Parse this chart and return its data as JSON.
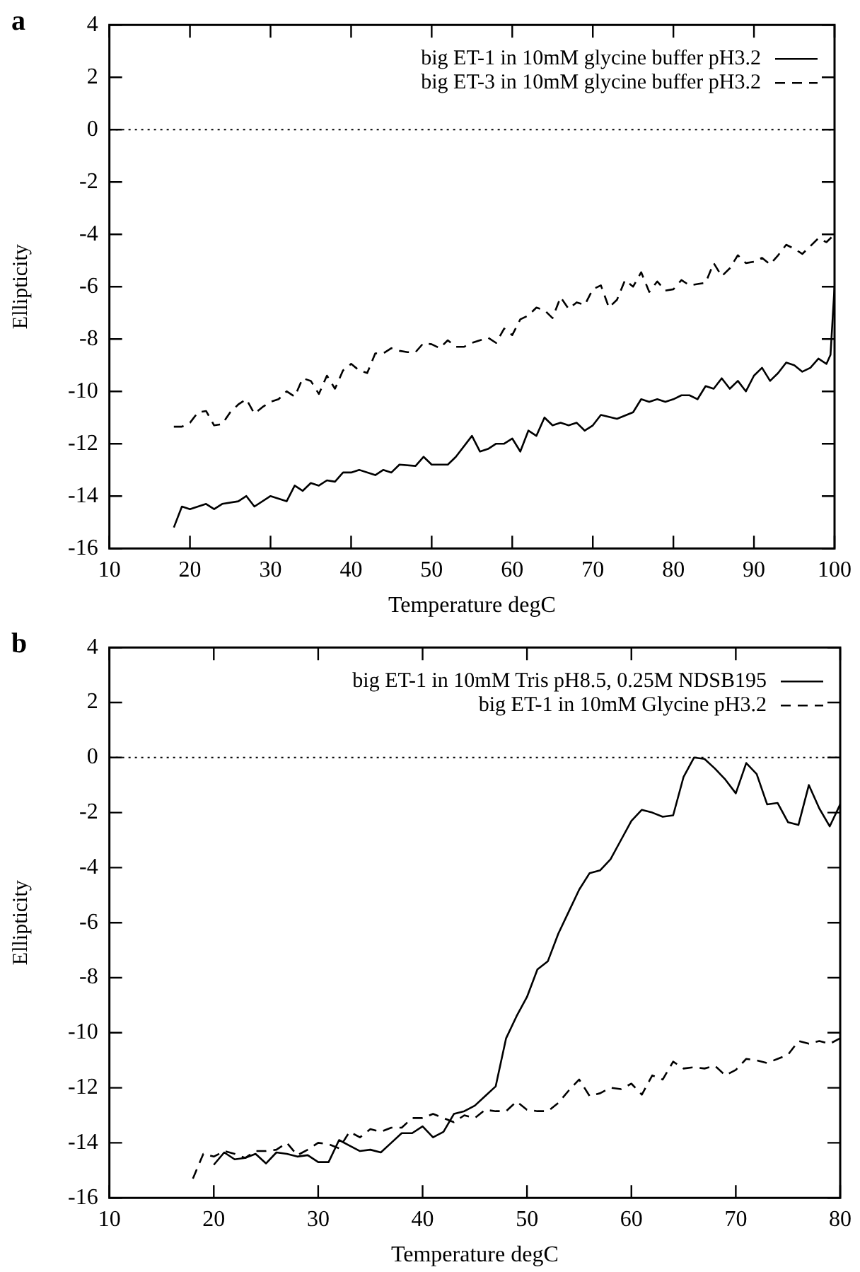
{
  "chart_data": [
    {
      "type": "line",
      "title": "a",
      "xlabel": "Temperature degC",
      "ylabel": "Ellipticity",
      "xlim": [
        10,
        100
      ],
      "xticks": [
        10,
        20,
        30,
        40,
        50,
        60,
        70,
        80,
        90,
        100
      ],
      "ylim": [
        -16,
        4
      ],
      "yticks": [
        -16,
        -14,
        -12,
        -10,
        -8,
        -6,
        -4,
        -2,
        0,
        2,
        4
      ],
      "legend": "top right",
      "grid": false,
      "marker": "none",
      "ref_lines": [
        {
          "axis": "y",
          "value": 0,
          "line_style": "dotted",
          "color": "#000000"
        }
      ],
      "series": [
        {
          "name": "big ET-1 in 10mM glycine buffer pH3.2",
          "color": "#000000",
          "line_style": "solid",
          "x": [
            18,
            19,
            20,
            22,
            23,
            24,
            26,
            27,
            28,
            30,
            32,
            33,
            34,
            35,
            36,
            37,
            38,
            39,
            40,
            41,
            43,
            44,
            45,
            46,
            48,
            49,
            50,
            52,
            53,
            55,
            56,
            57,
            58,
            59,
            60,
            61,
            62,
            63,
            64,
            65,
            66,
            67,
            68,
            69,
            70,
            71,
            73,
            75,
            76,
            77,
            78,
            79,
            80,
            81,
            82,
            83,
            84,
            85,
            86,
            87,
            88,
            89,
            90,
            91,
            92,
            93,
            94,
            95,
            96,
            97,
            98,
            99,
            99.5,
            100
          ],
          "values": [
            -15.2,
            -14.4,
            -14.5,
            -14.3,
            -14.5,
            -14.3,
            -14.2,
            -14.0,
            -14.4,
            -14.0,
            -14.2,
            -13.6,
            -13.8,
            -13.5,
            -13.6,
            -13.4,
            -13.45,
            -13.1,
            -13.1,
            -13.0,
            -13.2,
            -13.0,
            -13.1,
            -12.8,
            -12.85,
            -12.5,
            -12.8,
            -12.8,
            -12.5,
            -11.7,
            -12.3,
            -12.2,
            -12.0,
            -12.0,
            -11.8,
            -12.3,
            -11.5,
            -11.7,
            -11.0,
            -11.3,
            -11.2,
            -11.3,
            -11.2,
            -11.5,
            -11.3,
            -10.9,
            -11.05,
            -10.8,
            -10.3,
            -10.4,
            -10.3,
            -10.4,
            -10.3,
            -10.15,
            -10.15,
            -10.3,
            -9.8,
            -9.9,
            -9.5,
            -9.9,
            -9.6,
            -10.0,
            -9.4,
            -9.1,
            -9.6,
            -9.3,
            -8.9,
            -9.0,
            -9.25,
            -9.1,
            -8.75,
            -8.95,
            -8.6,
            -6.0
          ]
        },
        {
          "name": "big ET-3 in 10mM glycine buffer pH3.2",
          "color": "#000000",
          "line_style": "dashed",
          "x": [
            18,
            19,
            20,
            21,
            22,
            23,
            24,
            25,
            26,
            27,
            28,
            29,
            30,
            31,
            32,
            33,
            34,
            35,
            36,
            37,
            38,
            39,
            40,
            41,
            42,
            43,
            44,
            45,
            46,
            47,
            48,
            49,
            50,
            51,
            52,
            53,
            54,
            55,
            56,
            57,
            58,
            59,
            60,
            61,
            62,
            63,
            64,
            65,
            66,
            67,
            68,
            69,
            70,
            71,
            72,
            73,
            74,
            75,
            76,
            77,
            78,
            79,
            80,
            81,
            82,
            83,
            84,
            85,
            86,
            87,
            88,
            89,
            90,
            91,
            92,
            93,
            94,
            95,
            96,
            97,
            98,
            99,
            100
          ],
          "values": [
            -11.35,
            -11.35,
            -11.2,
            -10.8,
            -10.75,
            -11.3,
            -11.25,
            -10.8,
            -10.5,
            -10.3,
            -10.85,
            -10.6,
            -10.4,
            -10.3,
            -10.0,
            -10.2,
            -9.5,
            -9.6,
            -10.1,
            -9.4,
            -9.9,
            -9.2,
            -8.95,
            -9.2,
            -9.3,
            -8.55,
            -8.55,
            -8.35,
            -8.45,
            -8.5,
            -8.5,
            -8.15,
            -8.2,
            -8.35,
            -8.05,
            -8.3,
            -8.3,
            -8.15,
            -8.05,
            -7.95,
            -8.15,
            -7.6,
            -7.85,
            -7.25,
            -7.1,
            -6.8,
            -6.9,
            -7.2,
            -6.4,
            -6.85,
            -6.6,
            -6.7,
            -6.1,
            -5.95,
            -6.8,
            -6.5,
            -5.75,
            -6.0,
            -5.45,
            -6.2,
            -5.8,
            -6.15,
            -6.1,
            -5.75,
            -5.95,
            -5.9,
            -5.85,
            -5.1,
            -5.6,
            -5.3,
            -4.8,
            -5.1,
            -5.05,
            -4.9,
            -5.15,
            -4.8,
            -4.4,
            -4.55,
            -4.75,
            -4.45,
            -4.15,
            -4.3,
            -4.0
          ]
        }
      ]
    },
    {
      "type": "line",
      "title": "b",
      "xlabel": "Temperature degC",
      "ylabel": "Ellipticity",
      "xlim": [
        10,
        80
      ],
      "xticks": [
        10,
        20,
        30,
        40,
        50,
        60,
        70,
        80
      ],
      "ylim": [
        -16,
        4
      ],
      "yticks": [
        -16,
        -14,
        -12,
        -10,
        -8,
        -6,
        -4,
        -2,
        0,
        2,
        4
      ],
      "legend": "top right",
      "grid": false,
      "marker": "none",
      "ref_lines": [
        {
          "axis": "y",
          "value": 0,
          "line_style": "dotted",
          "color": "#000000"
        }
      ],
      "series": [
        {
          "name": "big ET-1 in 10mM Tris pH8.5, 0.25M NDSB195",
          "color": "#000000",
          "line_style": "solid",
          "x": [
            20,
            21,
            22,
            23,
            24,
            25,
            26,
            27,
            28,
            29,
            30,
            31,
            32,
            33,
            34,
            35,
            36,
            37,
            38,
            39,
            40,
            41,
            42,
            43,
            44,
            45,
            46,
            47,
            48,
            49,
            50,
            51,
            52,
            53,
            54,
            55,
            56,
            57,
            58,
            59,
            60,
            61,
            62,
            63,
            64,
            65,
            66,
            67,
            68,
            69,
            70,
            71,
            72,
            73,
            74,
            75,
            76,
            77,
            78,
            79,
            80
          ],
          "values": [
            -14.8,
            -14.35,
            -14.6,
            -14.55,
            -14.4,
            -14.75,
            -14.35,
            -14.4,
            -14.5,
            -14.45,
            -14.7,
            -14.7,
            -13.9,
            -14.1,
            -14.3,
            -14.25,
            -14.35,
            -14.0,
            -13.65,
            -13.65,
            -13.4,
            -13.8,
            -13.6,
            -12.95,
            -12.85,
            -12.65,
            -12.3,
            -11.95,
            -10.2,
            -9.4,
            -8.7,
            -7.7,
            -7.4,
            -6.4,
            -5.6,
            -4.8,
            -4.2,
            -4.1,
            -3.7,
            -3.0,
            -2.3,
            -1.9,
            -2.0,
            -2.15,
            -2.1,
            -0.7,
            0.0,
            -0.05,
            -0.4,
            -0.8,
            -1.3,
            -0.2,
            -0.6,
            -1.7,
            -1.65,
            -2.35,
            -2.45,
            -1.0,
            -1.85,
            -2.5,
            -1.7
          ]
        },
        {
          "name": "big ET-1 in 10mM Glycine pH3.2",
          "color": "#000000",
          "line_style": "dashed",
          "x": [
            18,
            19,
            20,
            21,
            22,
            23,
            24,
            25,
            26,
            27,
            28,
            29,
            30,
            31,
            32,
            33,
            34,
            35,
            36,
            37,
            38,
            39,
            40,
            41,
            42,
            43,
            44,
            45,
            46,
            47,
            48,
            49,
            50,
            51,
            52,
            53,
            54,
            55,
            56,
            57,
            58,
            59,
            60,
            61,
            62,
            63,
            64,
            65,
            66,
            67,
            68,
            69,
            70,
            71,
            72,
            73,
            74,
            75,
            76,
            77,
            78,
            79,
            80
          ],
          "values": [
            -15.3,
            -14.4,
            -14.5,
            -14.3,
            -14.4,
            -14.55,
            -14.3,
            -14.3,
            -14.25,
            -14.0,
            -14.45,
            -14.25,
            -14.0,
            -14.05,
            -14.2,
            -13.6,
            -13.8,
            -13.5,
            -13.6,
            -13.45,
            -13.45,
            -13.1,
            -13.1,
            -12.95,
            -13.1,
            -13.25,
            -13.0,
            -13.1,
            -12.8,
            -12.85,
            -12.85,
            -12.5,
            -12.8,
            -12.85,
            -12.85,
            -12.55,
            -12.1,
            -11.7,
            -12.3,
            -12.2,
            -12.0,
            -12.05,
            -11.85,
            -12.25,
            -11.55,
            -11.7,
            -11.05,
            -11.3,
            -11.25,
            -11.3,
            -11.2,
            -11.55,
            -11.35,
            -10.95,
            -11.0,
            -11.1,
            -10.95,
            -10.8,
            -10.3,
            -10.4,
            -10.3,
            -10.4,
            -10.2
          ]
        }
      ]
    }
  ]
}
